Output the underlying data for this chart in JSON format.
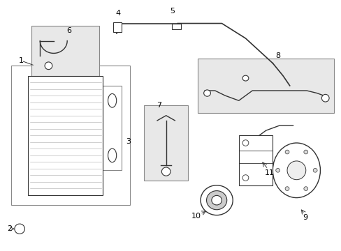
{
  "title": "",
  "bg_color": "#ffffff",
  "line_color": "#333333",
  "box_color": "#d0d0d0",
  "fig_width": 4.89,
  "fig_height": 3.6,
  "dpi": 100
}
